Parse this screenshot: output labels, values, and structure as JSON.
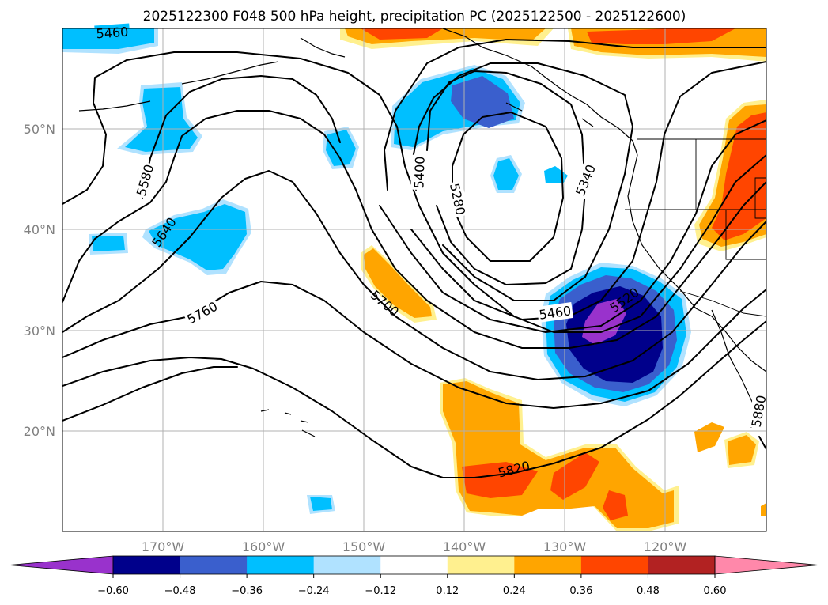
{
  "chart_data": {
    "type": "map-contour",
    "title": "2025122300 F048 500 hPa height, precipitation PC (2025122500 - 2025122600)",
    "lat_labels": [
      "50°N",
      "40°N",
      "30°N",
      "20°N"
    ],
    "lon_labels": [
      "170°W",
      "160°W",
      "150°W",
      "140°W",
      "130°W",
      "120°W"
    ],
    "lon_range": [
      -180,
      -110
    ],
    "lat_range": [
      10,
      60
    ],
    "grid": true,
    "colorbar": {
      "orientation": "horizontal",
      "extend": "both",
      "levels": [
        "−0.60",
        "−0.48",
        "−0.36",
        "−0.24",
        "−0.12",
        "0.12",
        "0.24",
        "0.36",
        "0.48",
        "0.60"
      ],
      "colors": [
        "#9932cc",
        "#00008b",
        "#3a5fcd",
        "#00bfff",
        "#b0e2ff",
        "#ffffff",
        "#fff08f",
        "#ffa500",
        "#ff4500",
        "#b22222",
        "#ff88aa"
      ]
    },
    "height_contours": [
      {
        "value": "5280",
        "label": "5280"
      },
      {
        "value": "5340",
        "label": "5340"
      },
      {
        "value": "5400",
        "label": "5400"
      },
      {
        "value": "5460",
        "label": "5460"
      },
      {
        "value": "5520",
        "label": "5520"
      },
      {
        "value": "5580",
        "label": "5580"
      },
      {
        "value": "5640",
        "label": "5640"
      },
      {
        "value": "5700",
        "label": "5700"
      },
      {
        "value": "5760",
        "label": "5760"
      },
      {
        "value": "5820",
        "label": "5820"
      },
      {
        "value": "5880",
        "label": "5880"
      }
    ],
    "extra_contour_label": "5460"
  }
}
